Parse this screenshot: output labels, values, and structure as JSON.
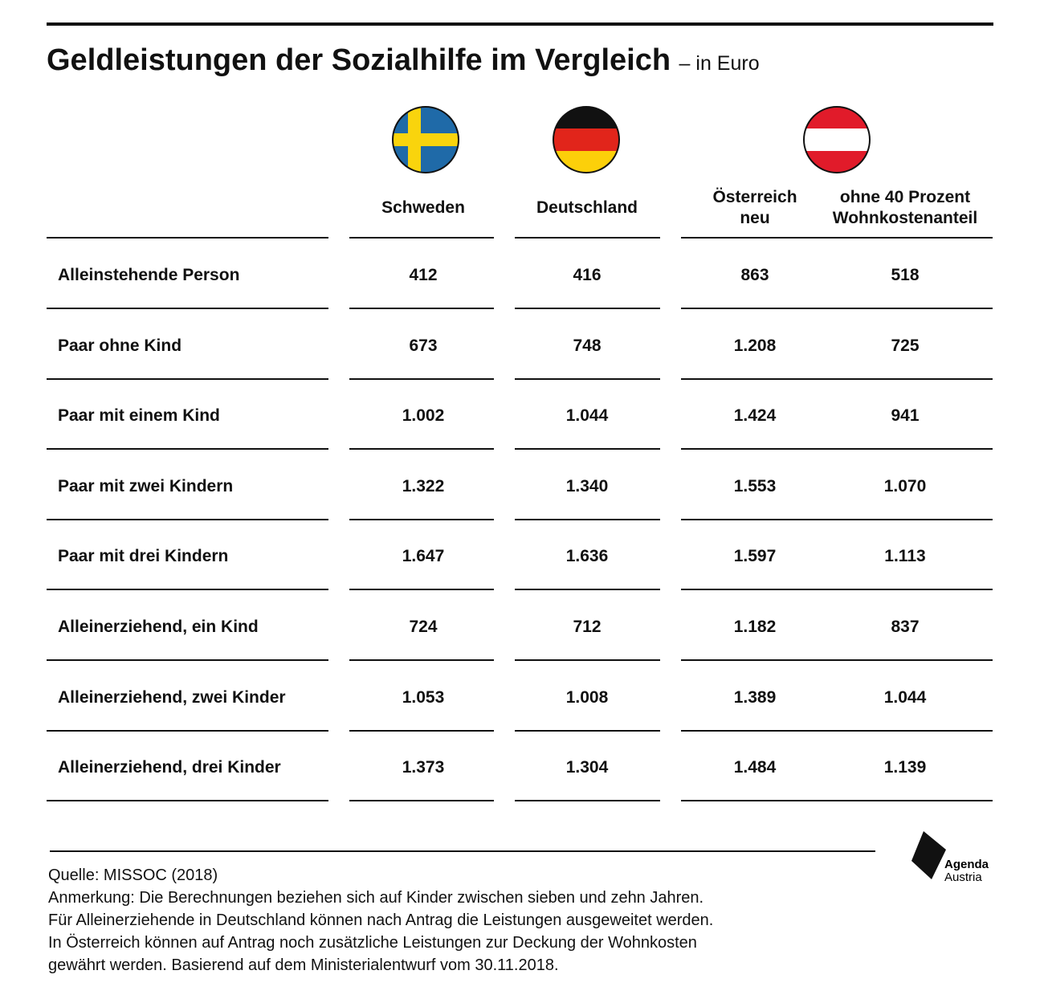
{
  "header": {
    "title": "Geldleistungen der Sozialhilfe im Vergleich",
    "subtitle": "– in Euro"
  },
  "table": {
    "columns": [
      "Schweden",
      "Deutschland",
      "Österreich\nneu",
      "ohne 40 Prozent\nWohnkostenanteil"
    ],
    "rows": [
      [
        "Alleinstehende Person",
        "412",
        "416",
        "863",
        "518"
      ],
      [
        "Paar ohne Kind",
        "673",
        "748",
        "1.208",
        "725"
      ],
      [
        "Paar mit einem Kind",
        "1.002",
        "1.044",
        "1.424",
        "941"
      ],
      [
        "Paar mit zwei Kindern",
        "1.322",
        "1.340",
        "1.553",
        "1.070"
      ],
      [
        "Paar mit drei Kindern",
        "1.647",
        "1.636",
        "1.597",
        "1.113"
      ],
      [
        "Alleinerziehend, ein Kind",
        "724",
        "712",
        "1.182",
        "837"
      ],
      [
        "Alleinerziehend, zwei Kinder",
        "1.053",
        "1.008",
        "1.389",
        "1.044"
      ],
      [
        "Alleinerziehend, drei Kinder",
        "1.373",
        "1.304",
        "1.484",
        "1.139"
      ]
    ]
  },
  "footer": {
    "source": "Quelle: MISSOC (2018)",
    "notes": [
      "Anmerkung: Die Berechnungen beziehen sich auf Kinder zwischen sieben und zehn Jahren.",
      "Für Alleinerziehende in Deutschland können nach Antrag die Leistungen ausgeweitet werden.",
      "In Österreich können auf Antrag noch zusätzliche Leistungen zur Deckung der Wohnkosten",
      "gewährt werden. Basierend auf dem Ministerialentwurf vom 30.11.2018."
    ]
  },
  "logo": {
    "line1": "Agenda",
    "line2": "Austria"
  }
}
